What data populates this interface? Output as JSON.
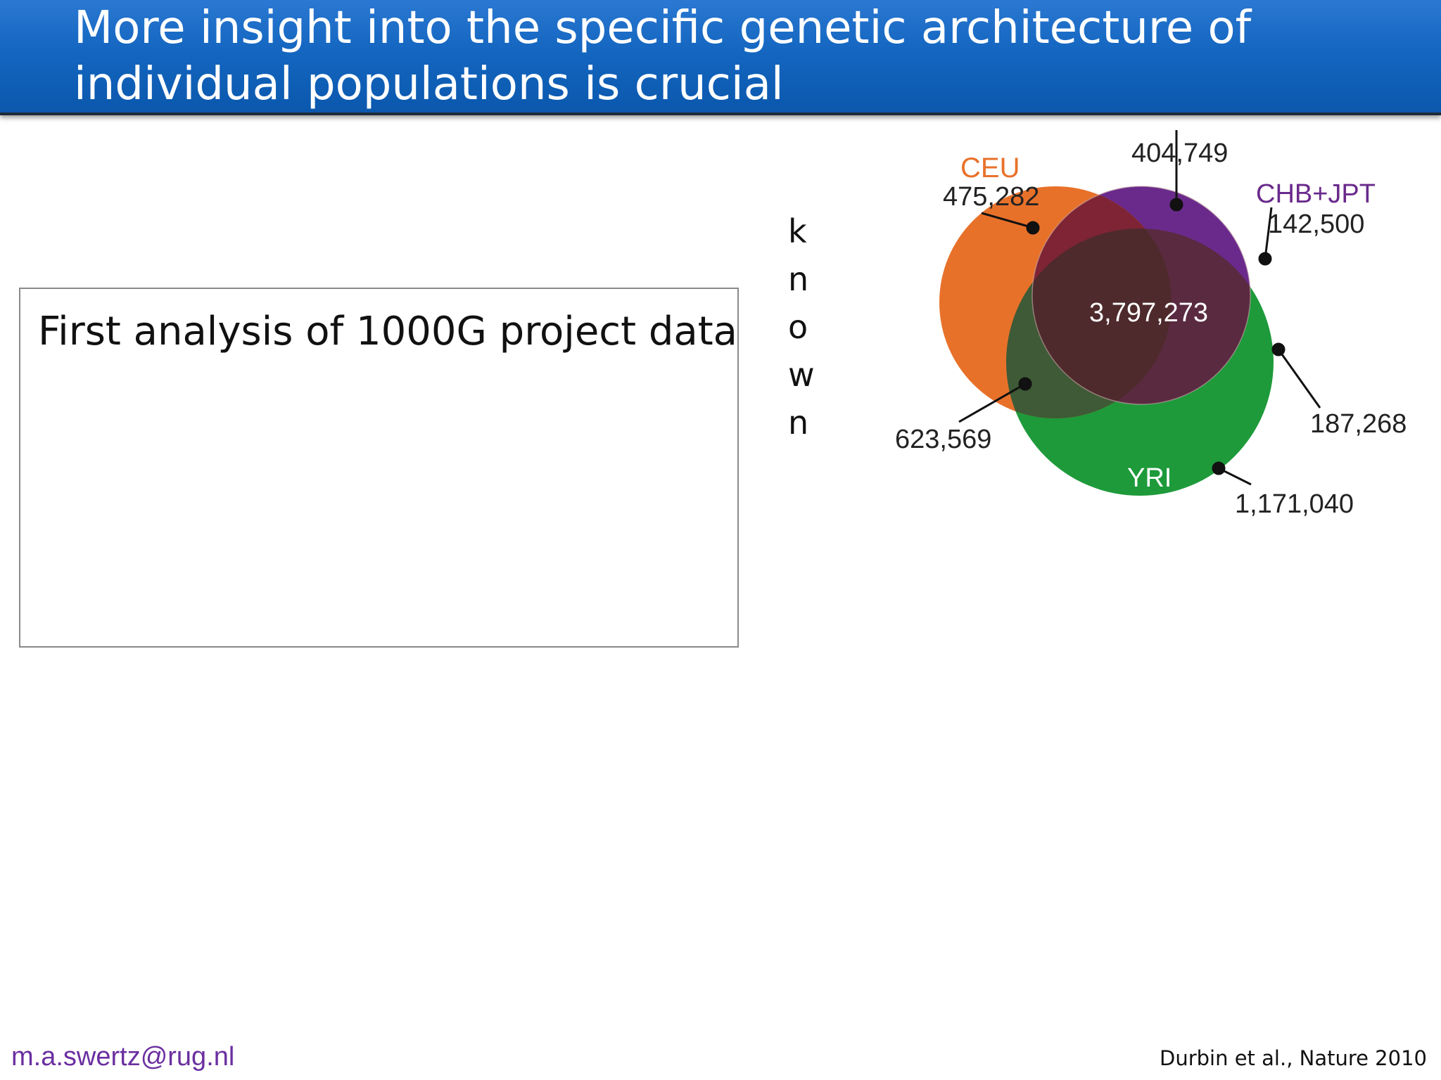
{
  "slide": {
    "title": "More insight into the specific genetic architecture of\nindividual populations is crucial",
    "box_text": "First analysis of 1000G project data",
    "vertical_letters": [
      "k",
      "n",
      "o",
      "w",
      "n"
    ],
    "footer_email": "m.a.swertz@rug.nl",
    "footer_citation": "Durbin et al., Nature 2010"
  },
  "chart_data": {
    "type": "venn",
    "sets": [
      {
        "name": "CEU",
        "color": "#e8712a"
      },
      {
        "name": "CHB+JPT",
        "color": "#6a2a8c"
      },
      {
        "name": "YRI",
        "color": "#1e9a3a"
      }
    ],
    "regions": {
      "ceu_only": "475,282",
      "ceu_chbjpt": "404,749",
      "chbjpt_only": "142,500",
      "all_three": "3,797,273",
      "ceu_yri": "623,569",
      "chbjpt_yri": "187,268",
      "yri_only": "1,171,040"
    },
    "colors": {
      "center": "#4e2a2c",
      "ceu_yri": "#3e5a36",
      "ceu_chbjpt": "#7e2434"
    }
  }
}
